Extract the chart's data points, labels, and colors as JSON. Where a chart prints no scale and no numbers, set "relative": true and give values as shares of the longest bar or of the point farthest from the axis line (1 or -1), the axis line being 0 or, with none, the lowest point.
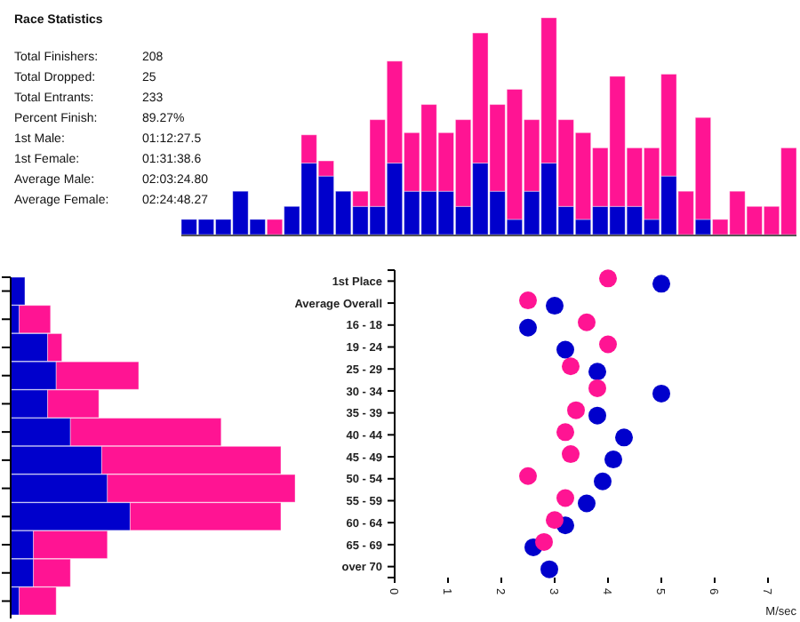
{
  "chart_data": [
    {
      "type": "other",
      "title": "Race Statistics",
      "annotations": [
        "Total Finishers:",
        "208",
        "Total Dropped:",
        "25",
        "Total Entrants:",
        "233",
        "Percent Finish:",
        "89.27%",
        "1st Male:",
        "01:12:27.5",
        "1st Female:",
        "01:31:38.6",
        "Average Male:",
        "02:03:24.80",
        "Average Female:",
        "02:24:48.27"
      ]
    },
    {
      "type": "bar",
      "stacked": true,
      "relative": true,
      "categories": [
        null,
        null,
        null,
        null,
        null,
        null,
        null,
        null,
        null,
        null,
        null,
        null,
        null,
        null,
        null,
        null,
        null,
        null,
        null,
        null,
        null,
        null,
        null,
        null,
        null,
        null,
        null,
        null,
        null,
        null,
        null,
        null,
        null,
        null,
        null,
        null
      ],
      "series": [
        {
          "color": "#0000cc",
          "values": [
            0.07,
            0.07,
            0.07,
            0.2,
            0.07,
            null,
            0.13,
            0.33,
            0.27,
            0.2,
            0.13,
            0.13,
            0.33,
            0.2,
            0.2,
            0.2,
            0.13,
            0.33,
            0.2,
            0.07,
            0.2,
            0.33,
            0.13,
            0.07,
            0.13,
            0.13,
            0.13,
            0.07,
            0.27,
            null,
            0.07,
            null,
            null,
            null,
            null,
            null
          ]
        },
        {
          "color": "#ff1493",
          "values": [
            null,
            null,
            null,
            null,
            null,
            0.07,
            null,
            0.13,
            0.07,
            null,
            0.07,
            0.4,
            0.47,
            0.27,
            0.4,
            0.27,
            0.4,
            0.6,
            0.4,
            0.6,
            0.33,
            0.67,
            0.4,
            0.4,
            0.27,
            0.6,
            0.27,
            0.33,
            0.47,
            0.2,
            0.47,
            0.07,
            0.2,
            0.13,
            0.13,
            0.4
          ]
        }
      ]
    },
    {
      "type": "bar",
      "stacked": true,
      "relative": true,
      "orientation": "horizontal",
      "categories": [
        null,
        null,
        null,
        null,
        null,
        null,
        null,
        null,
        null,
        null,
        null,
        null
      ],
      "series": [
        {
          "color": "#0000cc",
          "values": [
            0.05,
            0.03,
            0.13,
            0.16,
            0.13,
            0.21,
            0.32,
            0.34,
            0.42,
            0.08,
            0.08,
            0.03
          ]
        },
        {
          "color": "#ff1493",
          "values": [
            null,
            0.11,
            0.05,
            0.29,
            0.18,
            0.53,
            0.63,
            0.66,
            0.53,
            0.26,
            0.13,
            0.13
          ]
        }
      ]
    },
    {
      "type": "scatter",
      "orientation": "horizontal",
      "marker": "circle",
      "xlabel": "M/sec",
      "xlim": [
        0,
        7
      ],
      "xticks": [
        0,
        1,
        2,
        3,
        4,
        5,
        6,
        7
      ],
      "categories": [
        "1st Place",
        "Average Overall",
        "16 - 18",
        "19 - 24",
        "25 - 29",
        "30 - 34",
        "35 - 39",
        "40 - 44",
        "45 - 49",
        "50 - 54",
        "55 - 59",
        "60 - 64",
        "65 - 69",
        "over 70"
      ],
      "series": [
        {
          "color": "#0000cc",
          "values": [
            5.0,
            3.0,
            2.5,
            3.2,
            3.8,
            5.0,
            3.8,
            4.3,
            4.1,
            3.9,
            3.6,
            3.2,
            2.6,
            2.9
          ]
        },
        {
          "color": "#ff1493",
          "values": [
            4.0,
            2.5,
            3.6,
            4.0,
            3.3,
            3.8,
            3.4,
            3.2,
            3.3,
            2.5,
            3.2,
            3.0,
            2.8,
            null
          ]
        }
      ]
    }
  ]
}
